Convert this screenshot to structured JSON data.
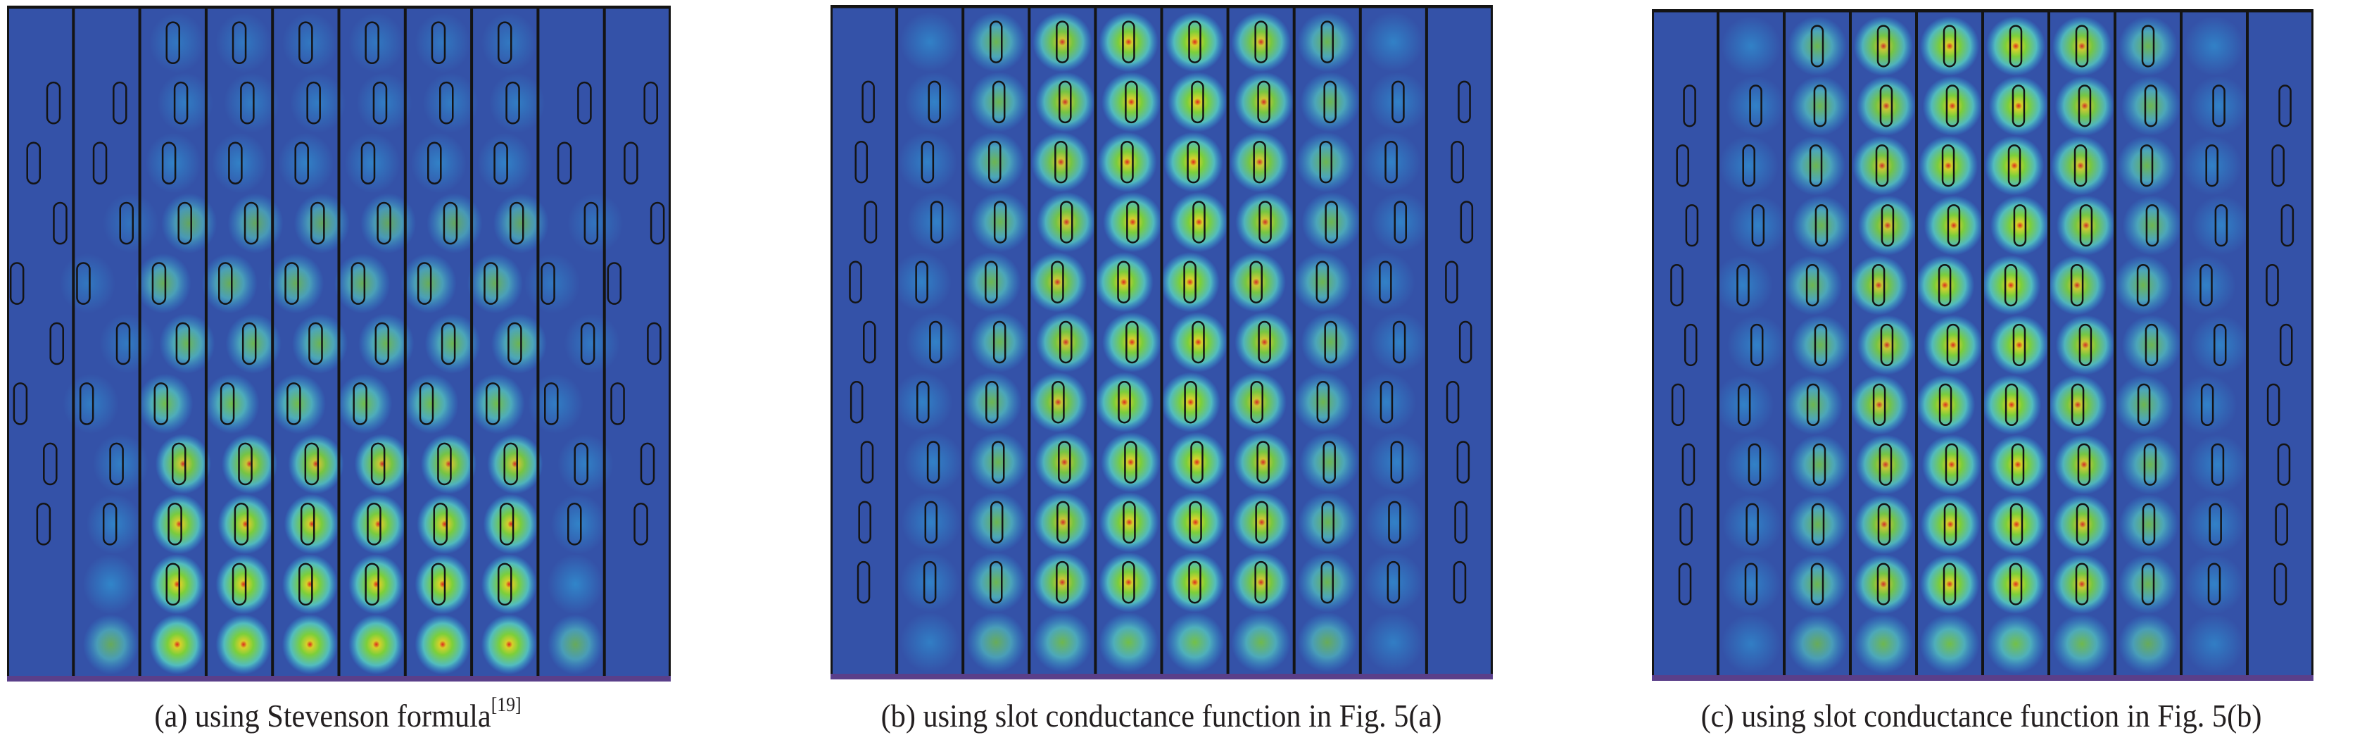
{
  "figure": {
    "panels": [
      {
        "id": "a",
        "caption": "(a) using Stevenson formula",
        "ref": "[19]",
        "colors": {
          "background": "#3452a8",
          "divider": "#141414"
        }
      },
      {
        "id": "b",
        "caption": "(b) using slot conductance function in Fig. 5(a)",
        "colors": {
          "background": "#3452a8",
          "divider": "#141414"
        }
      },
      {
        "id": "c",
        "caption": "(c) using slot conductance function in Fig. 5(b)",
        "colors": {
          "background": "#3452a8",
          "divider": "#141414"
        }
      }
    ],
    "colorscale": [
      "#3452a8",
      "#2fa8e0",
      "#56c8c0",
      "#7ccf3a",
      "#d6d12a",
      "#e0261c"
    ]
  }
}
